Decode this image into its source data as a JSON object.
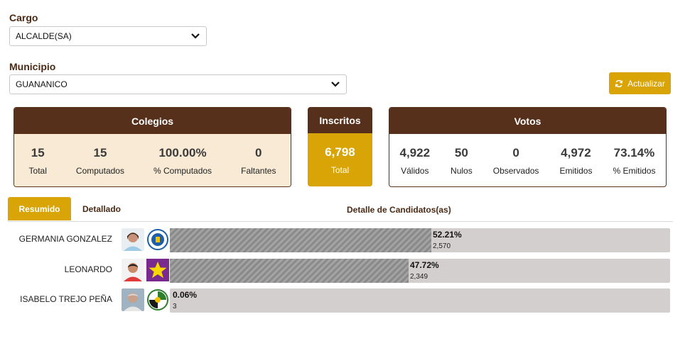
{
  "filters": {
    "cargo_label": "Cargo",
    "cargo_value": "ALCALDE(SA)",
    "municipio_label": "Municipio",
    "municipio_value": "GUANANICO",
    "update_button": "Actualizar"
  },
  "colegios": {
    "title": "Colegios",
    "stats": [
      {
        "value": "15",
        "label": "Total"
      },
      {
        "value": "15",
        "label": "Computados"
      },
      {
        "value": "100.00%",
        "label": "% Computados"
      },
      {
        "value": "0",
        "label": "Faltantes"
      }
    ]
  },
  "inscritos": {
    "title": "Inscritos",
    "value": "6,798",
    "label": "Total"
  },
  "votos": {
    "title": "Votos",
    "stats": [
      {
        "value": "4,922",
        "label": "Válidos"
      },
      {
        "value": "50",
        "label": "Nulos"
      },
      {
        "value": "0",
        "label": "Observados"
      },
      {
        "value": "4,972",
        "label": "Emitidos"
      },
      {
        "value": "73.14%",
        "label": "% Emitidos"
      }
    ]
  },
  "tabs": {
    "resumido": "Resumido",
    "detallado": "Detallado",
    "section_title": "Detalle de Candidatos(as)"
  },
  "candidates": [
    {
      "name": "GERMANIA GONZALEZ",
      "percent": "52.21%",
      "votes": "2,570",
      "share": 0.5221,
      "party_color": "#1f5fa8"
    },
    {
      "name": "LEONARDO",
      "percent": "47.72%",
      "votes": "2,349",
      "share": 0.4772,
      "party_color": "#7a2a8f"
    },
    {
      "name": "ISABELO TREJO PEÑA",
      "percent": "0.06%",
      "votes": "3",
      "share": 0.0006,
      "party_color": "#2f7d2f"
    }
  ],
  "colors": {
    "brand_brown": "#56301b",
    "accent_gold": "#d8a406",
    "colegios_bg": "#f8ead4"
  }
}
